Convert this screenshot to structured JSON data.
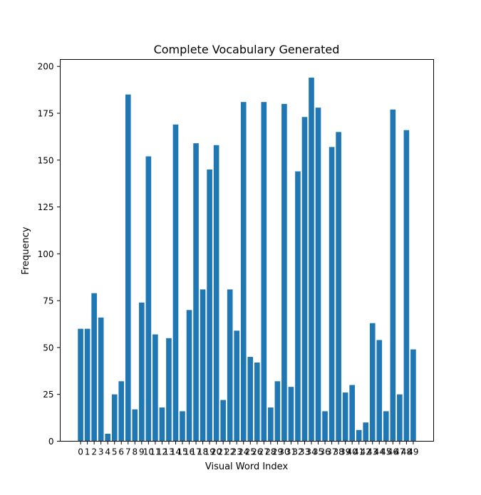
{
  "chart_data": {
    "type": "bar",
    "title": "Complete Vocabulary Generated",
    "xlabel": "Visual Word Index",
    "ylabel": "Frequency",
    "categories": [
      "0",
      "1",
      "2",
      "3",
      "4",
      "5",
      "6",
      "7",
      "8",
      "9",
      "10",
      "11",
      "12",
      "13",
      "14",
      "15",
      "16",
      "17",
      "18",
      "19",
      "20",
      "21",
      "22",
      "23",
      "24",
      "25",
      "26",
      "27",
      "28",
      "29",
      "30",
      "31",
      "32",
      "33",
      "34",
      "35",
      "36",
      "37",
      "38",
      "39",
      "40",
      "41",
      "42",
      "43",
      "44",
      "45",
      "46",
      "47",
      "48",
      "49"
    ],
    "values": [
      60,
      60,
      79,
      66,
      4,
      25,
      32,
      185,
      17,
      74,
      152,
      57,
      18,
      55,
      169,
      16,
      70,
      159,
      81,
      145,
      158,
      22,
      81,
      59,
      181,
      45,
      42,
      181,
      18,
      32,
      180,
      29,
      144,
      173,
      194,
      178,
      16,
      157,
      165,
      26,
      30,
      6,
      10,
      63,
      54,
      16,
      177,
      25,
      166,
      49
    ],
    "yticks": [
      0,
      25,
      50,
      75,
      100,
      125,
      150,
      175,
      200
    ],
    "ylim": [
      0,
      203.7
    ],
    "grid": false,
    "colors": {
      "bar": "#1f77b4"
    }
  }
}
